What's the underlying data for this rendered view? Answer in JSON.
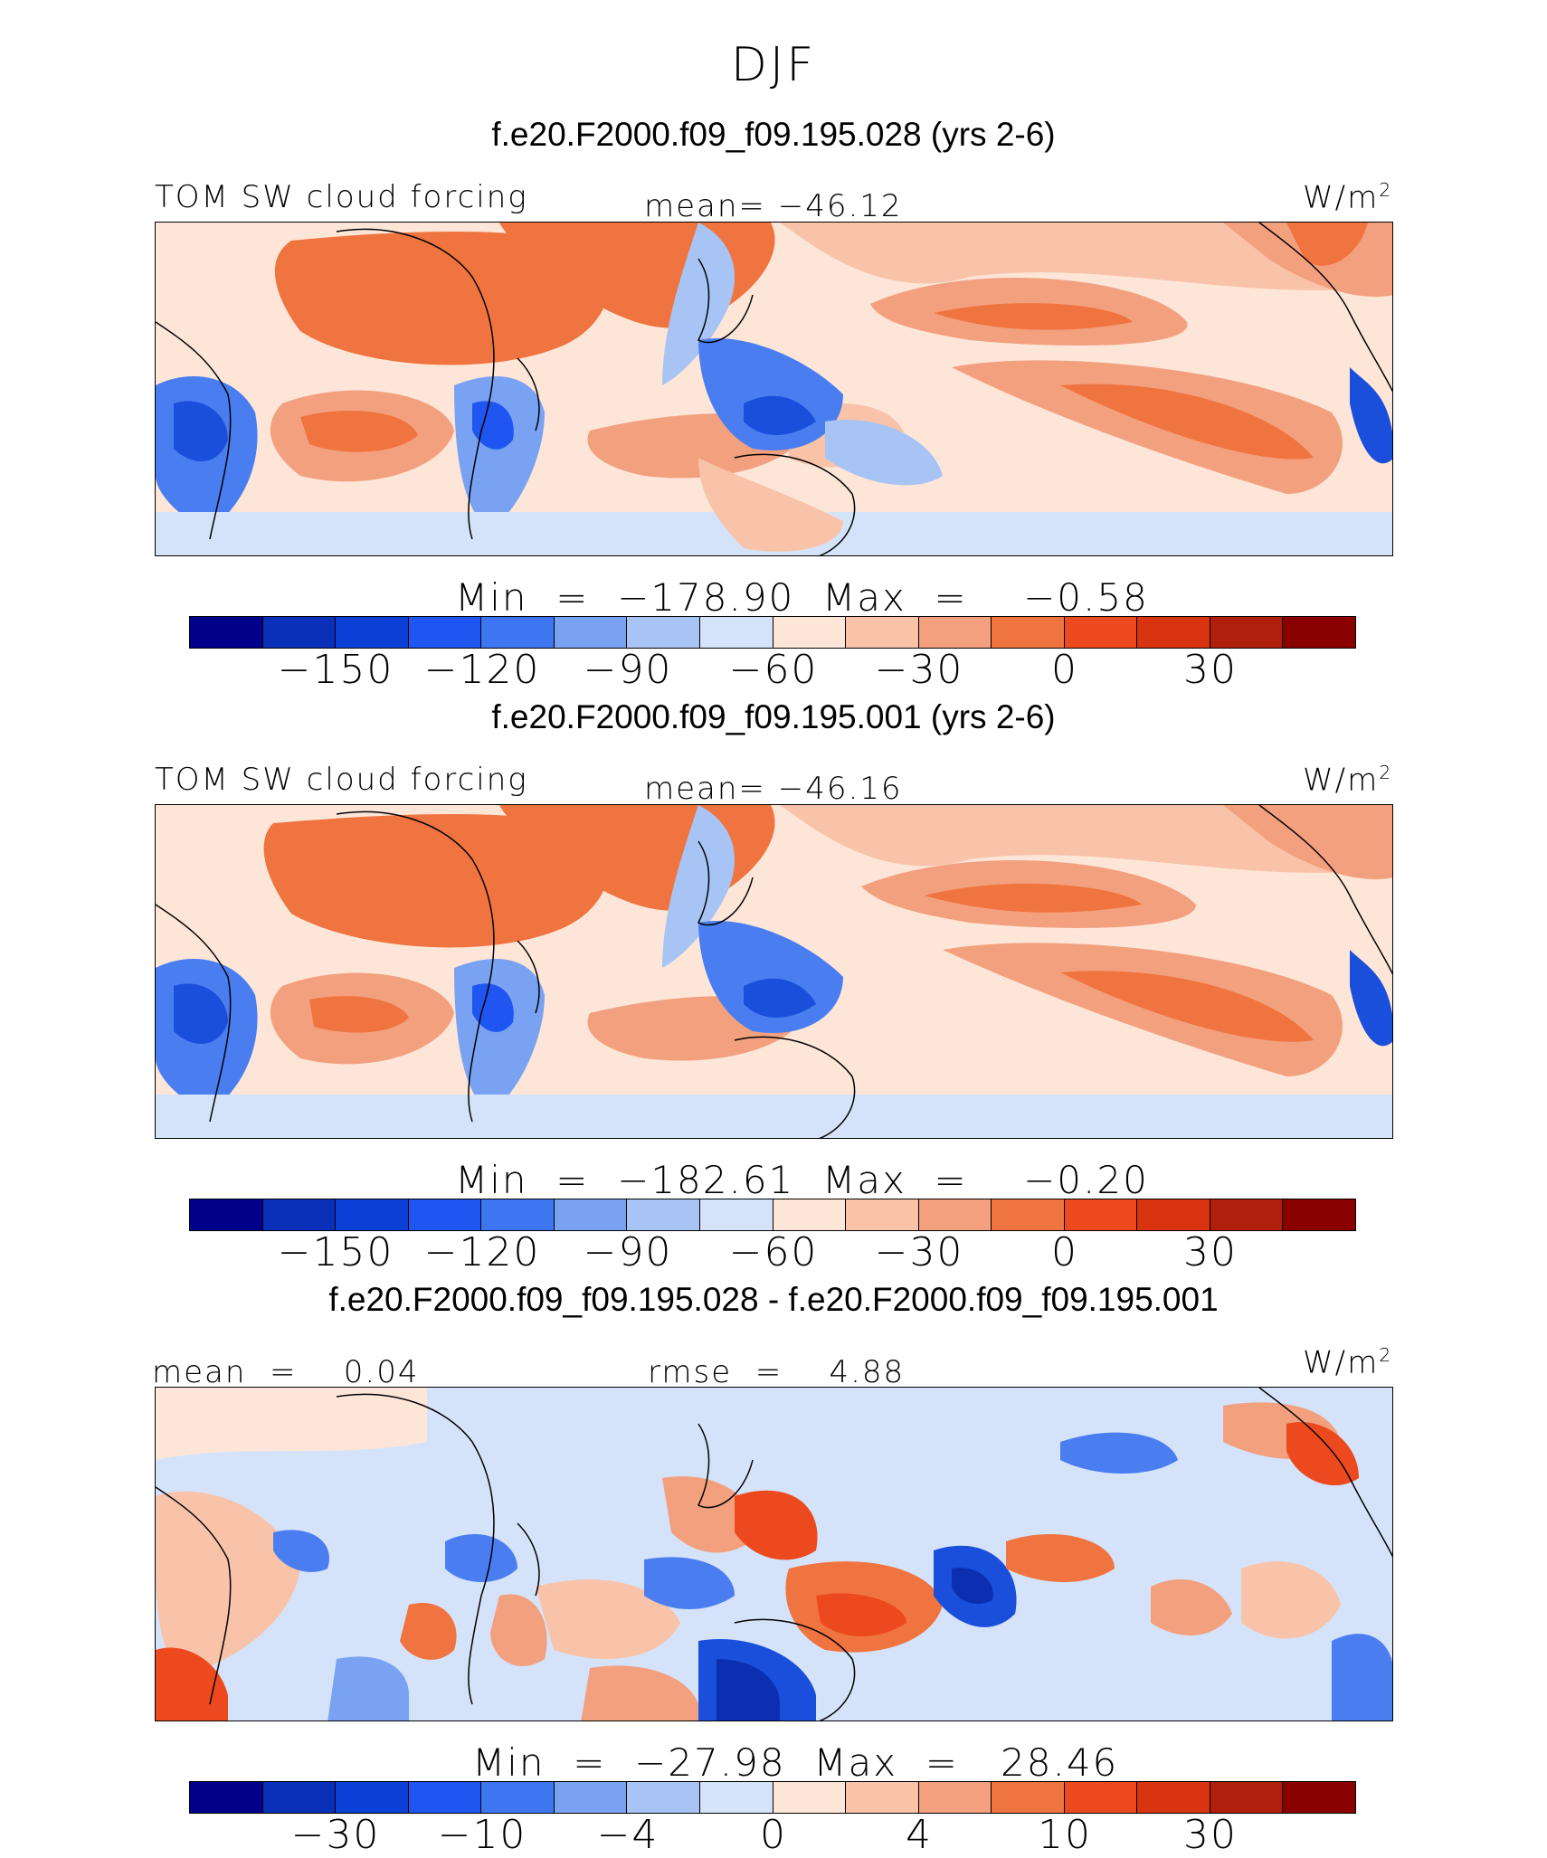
{
  "season": "DJF",
  "panels": [
    {
      "header": "f.e20.F2000.f09_f09.195.028 (yrs 2-6)",
      "left_label": "TOM SW cloud forcing",
      "center_label": "mean= −46.12",
      "unit_base": "W/m",
      "unit_exp": "2",
      "minmax": "Min  =  −178.90  Max  =    −0.58",
      "ticks": [
        "−150",
        "−120",
        "−90",
        "−60",
        "−30",
        "0",
        "30"
      ],
      "map_type": "field"
    },
    {
      "header": "f.e20.F2000.f09_f09.195.001 (yrs 2-6)",
      "left_label": "TOM SW cloud forcing",
      "center_label": "mean= −46.16",
      "unit_base": "W/m",
      "unit_exp": "2",
      "minmax": "Min  =  −182.61  Max  =    −0.20",
      "ticks": [
        "−150",
        "−120",
        "−90",
        "−60",
        "−30",
        "0",
        "30"
      ],
      "map_type": "field"
    },
    {
      "header": "f.e20.F2000.f09_f09.195.028 - f.e20.F2000.f09_f09.195.001",
      "left_label": "mean  =    0.04",
      "center_label": "rmse  =    4.88",
      "unit_base": "W/m",
      "unit_exp": "2",
      "minmax": "Min  =  −27.98  Max  =   28.46",
      "ticks": [
        "−30",
        "−10",
        "−4",
        "0",
        "4",
        "10",
        "30"
      ],
      "map_type": "diff"
    }
  ],
  "colorbar_colors": [
    "#00008b",
    "#0a2fb8",
    "#0b40d6",
    "#1f55f0",
    "#3d76f0",
    "#7aa2f2",
    "#a8c4f5",
    "#d5e3fa",
    "#fde6d8",
    "#f8c3a8",
    "#f3a07f",
    "#f0743f",
    "#ec4a1e",
    "#d83410",
    "#b01e0c",
    "#8b0000"
  ],
  "map_colors": {
    "deep_blue": "#1a4fdc",
    "blue": "#4a7ef0",
    "light_blue": "#a8c4f5",
    "pale_blue": "#d5e3fa",
    "pale": "#fde6d8",
    "light_orange": "#f8c3a8",
    "orange": "#f3a07f",
    "strong_orange": "#f0743f",
    "red_orange": "#ec4a1e",
    "dark_blue": "#0b2fb0"
  }
}
